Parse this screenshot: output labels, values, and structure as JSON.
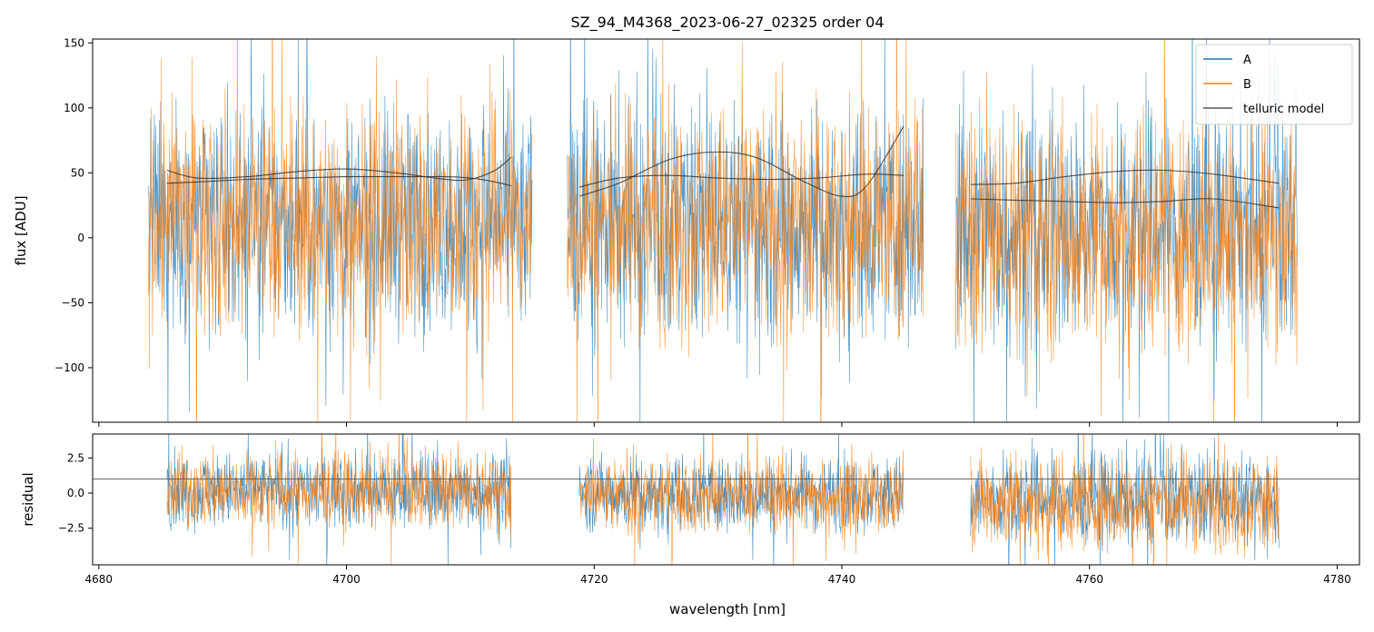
{
  "chart_data": {
    "type": "line",
    "title": "SZ_94_M4368_2023-06-27_02325  order 04",
    "xlabel": "wavelength [nm]",
    "xlim": [
      4679.5,
      4781.8
    ],
    "x_ticks": [
      "4680",
      "4700",
      "4720",
      "4740",
      "4760",
      "4780"
    ],
    "x_tick_values": [
      4680,
      4700,
      4720,
      4740,
      4760,
      4780
    ],
    "colors": {
      "A": "#1f77b4",
      "B": "#ff7f0e",
      "telluric": "#333333",
      "refline": "#555555"
    },
    "legend": {
      "position": "top-right",
      "entries": [
        "A",
        "B",
        "telluric model"
      ]
    },
    "panels": [
      {
        "name": "flux",
        "ylabel": "flux [ADU]",
        "ylim": [
          -142,
          153
        ],
        "y_ticks": [
          "−100",
          "−50",
          "0",
          "50",
          "100",
          "150"
        ],
        "y_tick_values": [
          -100,
          -50,
          0,
          50,
          100,
          150
        ],
        "segments": [
          {
            "x": [
              4684.0,
              4715.0
            ],
            "A": {
              "center": 12,
              "spread": 42
            },
            "B": {
              "center": 14,
              "spread": 44
            }
          },
          {
            "x": [
              4717.8,
              4746.6
            ],
            "A": {
              "center": 12,
              "spread": 44
            },
            "B": {
              "center": 12,
              "spread": 44
            }
          },
          {
            "x": [
              4749.2,
              4776.8
            ],
            "A": {
              "center": 8,
              "spread": 44
            },
            "B": {
              "center": 4,
              "spread": 46
            }
          }
        ],
        "telluric_model": [
          {
            "x": [
              4685.5,
              4688,
              4692,
              4696,
              4700,
              4704,
              4708,
              4710,
              4712,
              4713.3
            ],
            "y": [
              42,
              43,
              45,
              46,
              47,
              47,
              47,
              46,
              43,
              40
            ]
          },
          {
            "x": [
              4685.5,
              4688,
              4692,
              4696,
              4700,
              4704,
              4708,
              4710,
              4712,
              4713.3
            ],
            "y": [
              52,
              46,
              47,
              51,
              53,
              50,
              45,
              45,
              52,
              62
            ]
          },
          {
            "x": [
              4718.8,
              4722,
              4726,
              4730,
              4734,
              4738,
              4742,
              4745
            ],
            "y": [
              39,
              46,
              48,
              46,
              45,
              46,
              49,
              48
            ]
          },
          {
            "x": [
              4718.8,
              4722,
              4726,
              4729.5,
              4733,
              4737,
              4740,
              4742,
              4745
            ],
            "y": [
              32,
              42,
              60,
              66,
              62,
              43,
              32,
              40,
              86
            ]
          },
          {
            "x": [
              4750.4,
              4754,
              4758,
              4762,
              4766,
              4770,
              4775.3
            ],
            "y": [
              41,
              42,
              47,
              51,
              52,
              49,
              42
            ]
          },
          {
            "x": [
              4750.4,
              4754,
              4758,
              4762,
              4766,
              4770,
              4775.3
            ],
            "y": [
              30,
              29,
              28,
              27,
              28,
              30,
              23
            ]
          }
        ]
      },
      {
        "name": "residual",
        "ylabel": "residual",
        "ylim": [
          -5.1,
          4.2
        ],
        "y_ticks": [
          "−2.5",
          "0.0",
          "2.5"
        ],
        "y_tick_values": [
          -2.5,
          0,
          2.5
        ],
        "reference_line": 1,
        "segments": [
          {
            "x": [
              4685.5,
              4713.3
            ],
            "A": {
              "center": 0.2,
              "spread": 1.3
            },
            "B": {
              "center": 0.2,
              "spread": 1.3
            }
          },
          {
            "x": [
              4718.8,
              4745.0
            ],
            "A": {
              "center": 0.0,
              "spread": 1.3
            },
            "B": {
              "center": -0.2,
              "spread": 1.3
            }
          },
          {
            "x": [
              4750.4,
              4775.3
            ],
            "A": {
              "center": -0.4,
              "spread": 1.6
            },
            "B": {
              "center": -0.6,
              "spread": 1.7
            }
          }
        ]
      }
    ]
  }
}
